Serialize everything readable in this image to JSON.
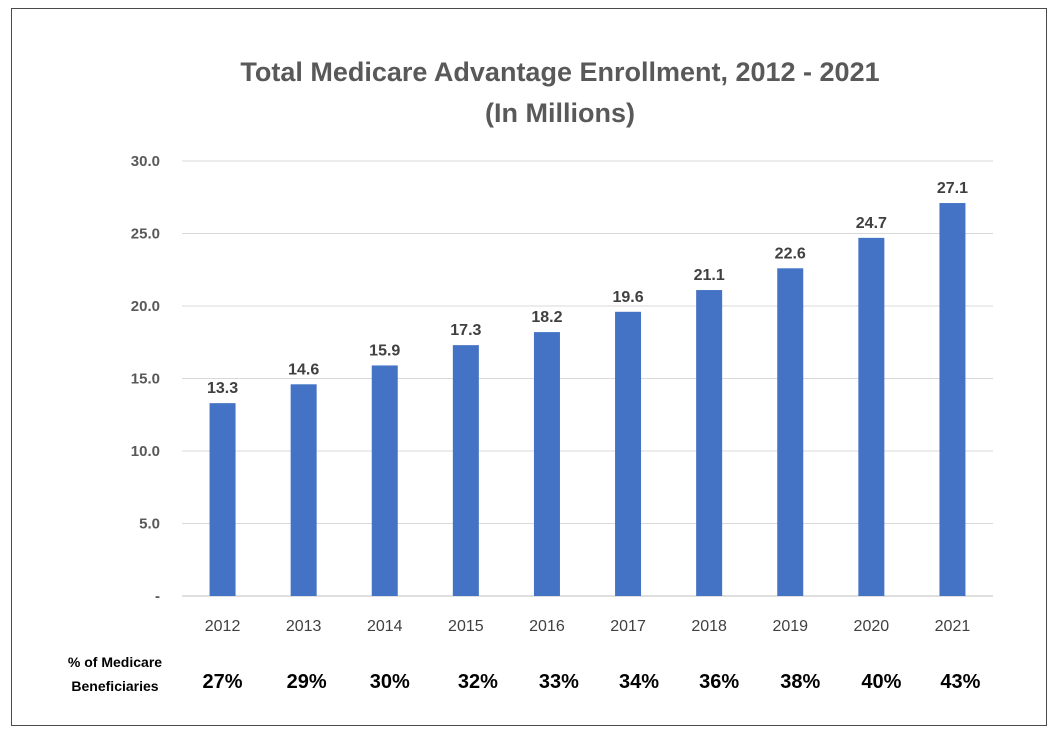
{
  "chart_data": {
    "type": "bar",
    "title": "Total Medicare Advantage Enrollment, 2012 - 2021",
    "subtitle": "(In Millions)",
    "categories": [
      "2012",
      "2013",
      "2014",
      "2015",
      "2016",
      "2017",
      "2018",
      "2019",
      "2020",
      "2021"
    ],
    "values": [
      13.3,
      14.6,
      15.9,
      17.3,
      18.2,
      19.6,
      21.1,
      22.6,
      24.7,
      27.1
    ],
    "data_labels": [
      "13.3",
      "14.6",
      "15.9",
      "17.3",
      "18.2",
      "19.6",
      "21.1",
      "22.6",
      "24.7",
      "27.1"
    ],
    "ylim": [
      0,
      30
    ],
    "yticks": [
      "-",
      "5.0",
      "10.0",
      "15.0",
      "20.0",
      "25.0",
      "30.0"
    ],
    "ytick_values": [
      0,
      5,
      10,
      15,
      20,
      25,
      30
    ],
    "grid": true,
    "bar_color": "#4472C4",
    "xlabel": "",
    "ylabel": ""
  },
  "beneficiaries": {
    "label_line1": "% of Medicare",
    "label_line2": "Beneficiaries",
    "values": [
      "27%",
      "29%",
      "30%",
      "32%",
      "33%",
      "34%",
      "36%",
      "38%",
      "40%",
      "43%"
    ]
  }
}
